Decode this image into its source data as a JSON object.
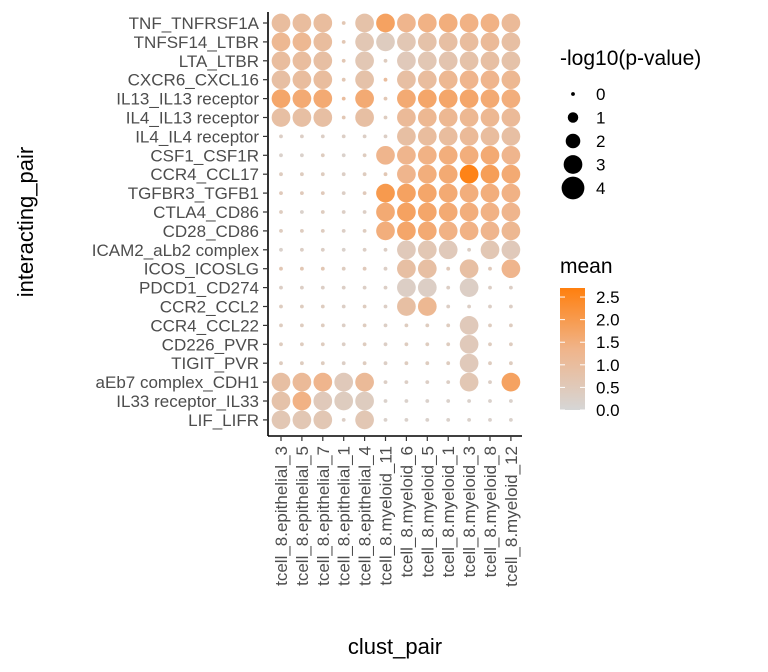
{
  "chart_data": {
    "type": "dotplot",
    "xlabel": "clust_pair",
    "ylabel": "interacting_pair",
    "x_categories": [
      "tcell_8.epithelial_3",
      "tcell_8.epithelial_5",
      "tcell_8.epithelial_7",
      "tcell_8.epithelial_1",
      "tcell_8.epithelial_4",
      "tcell_8.myeloid_11",
      "tcell_8.myeloid_6",
      "tcell_8.myeloid_5",
      "tcell_8.myeloid_1",
      "tcell_8.myeloid_3",
      "tcell_8.myeloid_8",
      "tcell_8.myeloid_12"
    ],
    "y_categories": [
      "TNF_TNFRSF1A",
      "TNFSF14_LTBR",
      "LTA_LTBR",
      "CXCR6_CXCL16",
      "IL13_IL13 receptor",
      "IL4_IL13 receptor",
      "IL4_IL4 receptor",
      "CSF1_CSF1R",
      "CCR4_CCL17",
      "TGFBR3_TGFB1",
      "CTLA4_CD86",
      "CD28_CD86",
      "ICAM2_aLb2 complex",
      "ICOS_ICOSLG",
      "PDCD1_CD274",
      "CCR2_CCL2",
      "CCR4_CCL22",
      "CD226_PVR",
      "TIGIT_PVR",
      "aEb7 complex_CDH1",
      "IL33 receptor_IL33",
      "LIF_LIFR"
    ],
    "size_legend": {
      "title": "-log10(p-value)",
      "breaks": [
        0,
        1,
        2,
        3,
        4
      ]
    },
    "color_legend": {
      "title": "mean",
      "breaks": [
        0.0,
        0.5,
        1.0,
        1.5,
        2.0,
        2.5
      ],
      "low_color": "#d6d6d6",
      "mid_color": "#f0b48a",
      "high_color": "#ff7f0e",
      "range": [
        0,
        2.7
      ]
    },
    "pvalue_matrix": [
      [
        3,
        3,
        3,
        0,
        3,
        3,
        3,
        3,
        3,
        3,
        3,
        3
      ],
      [
        3,
        3,
        3,
        0,
        3,
        3,
        3,
        3,
        3,
        3,
        3,
        3
      ],
      [
        3,
        3,
        3,
        0,
        3,
        0,
        3,
        3,
        3,
        3,
        3,
        3
      ],
      [
        3,
        3,
        3,
        0,
        3,
        0,
        3,
        3,
        3,
        3,
        3,
        3
      ],
      [
        3,
        3,
        3,
        0,
        3,
        0,
        3,
        3,
        3,
        3,
        3,
        3
      ],
      [
        3,
        3,
        3,
        0,
        3,
        0,
        3,
        3,
        3,
        3,
        3,
        3
      ],
      [
        0,
        0,
        0,
        0,
        0,
        0,
        3,
        3,
        3,
        3,
        3,
        3
      ],
      [
        0,
        0,
        0,
        0,
        0,
        3,
        3,
        3,
        3,
        3,
        3,
        3
      ],
      [
        0,
        0,
        0,
        0,
        0,
        0,
        3,
        3,
        3,
        3,
        3,
        3
      ],
      [
        0,
        0,
        0,
        0,
        0,
        3,
        3,
        3,
        3,
        3,
        3,
        3
      ],
      [
        0,
        0,
        0,
        0,
        0,
        3,
        3,
        3,
        3,
        3,
        3,
        3
      ],
      [
        0,
        0,
        0,
        0,
        0,
        3,
        3,
        3,
        3,
        3,
        3,
        3
      ],
      [
        0,
        0,
        0,
        0,
        0,
        0,
        3,
        3,
        3,
        0,
        3,
        3
      ],
      [
        0,
        0,
        0,
        0,
        0,
        0,
        3,
        3,
        0,
        3,
        0,
        3
      ],
      [
        0,
        0,
        0,
        0,
        0,
        0,
        3,
        3,
        0,
        3,
        0,
        0
      ],
      [
        0,
        0,
        0,
        0,
        0,
        0,
        3,
        3,
        0,
        0,
        0,
        0
      ],
      [
        0,
        0,
        0,
        0,
        0,
        0,
        0,
        0,
        0,
        3,
        0,
        0
      ],
      [
        0,
        0,
        0,
        0,
        0,
        0,
        0,
        0,
        0,
        3,
        0,
        0
      ],
      [
        0,
        0,
        0,
        0,
        0,
        0,
        0,
        0,
        0,
        3,
        0,
        0
      ],
      [
        3,
        3,
        3,
        3,
        3,
        0,
        0,
        0,
        0,
        3,
        0,
        3
      ],
      [
        3,
        3,
        3,
        3,
        3,
        0,
        0,
        0,
        0,
        0,
        0,
        0
      ],
      [
        3,
        3,
        3,
        0,
        3,
        0,
        0,
        0,
        0,
        0,
        0,
        0
      ]
    ],
    "mean_matrix": [
      [
        1.0,
        1.0,
        1.0,
        0.6,
        0.8,
        1.8,
        1.3,
        1.4,
        1.5,
        1.4,
        1.4,
        1.1
      ],
      [
        1.2,
        1.2,
        1.0,
        0.6,
        0.6,
        0.4,
        0.6,
        0.8,
        0.9,
        1.0,
        1.1,
        0.9
      ],
      [
        1.0,
        1.0,
        0.9,
        0.6,
        0.6,
        0.4,
        0.5,
        0.6,
        0.7,
        0.8,
        0.9,
        0.8
      ],
      [
        0.9,
        1.0,
        1.0,
        0.6,
        0.8,
        1.0,
        0.9,
        1.0,
        1.2,
        1.3,
        1.3,
        1.2
      ],
      [
        1.7,
        1.6,
        1.6,
        1.0,
        1.6,
        0.6,
        1.6,
        1.7,
        1.7,
        1.7,
        1.6,
        1.5
      ],
      [
        0.9,
        0.9,
        0.9,
        0.6,
        0.9,
        0.4,
        1.1,
        1.2,
        1.2,
        1.2,
        1.2,
        1.1
      ],
      [
        0.3,
        0.3,
        0.3,
        0.3,
        0.3,
        0.3,
        0.9,
        1.0,
        1.0,
        1.1,
        1.0,
        0.9
      ],
      [
        0.2,
        0.2,
        0.4,
        0.2,
        0.4,
        1.3,
        1.3,
        1.4,
        1.5,
        1.5,
        1.6,
        1.3
      ],
      [
        0.4,
        0.4,
        0.4,
        0.3,
        0.4,
        0.6,
        1.3,
        1.5,
        1.6,
        2.6,
        1.9,
        1.6
      ],
      [
        0.5,
        0.5,
        0.5,
        0.3,
        0.5,
        2.0,
        1.8,
        1.7,
        1.6,
        1.5,
        1.5,
        1.4
      ],
      [
        0.4,
        0.2,
        0.4,
        0.3,
        0.3,
        1.6,
        1.8,
        1.7,
        1.6,
        1.5,
        1.4,
        1.3
      ],
      [
        0.4,
        0.4,
        0.4,
        0.3,
        0.4,
        1.5,
        1.7,
        1.6,
        1.4,
        1.4,
        1.3,
        1.2
      ],
      [
        0.2,
        0.3,
        0.3,
        0.2,
        0.3,
        0.3,
        0.5,
        0.6,
        0.5,
        0.3,
        0.6,
        0.5
      ],
      [
        0.6,
        0.6,
        0.6,
        0.4,
        0.5,
        0.3,
        0.9,
        0.9,
        0.5,
        0.9,
        0.5,
        1.3
      ],
      [
        0.3,
        0.3,
        0.3,
        0.3,
        0.3,
        0.3,
        0.3,
        0.3,
        0.3,
        0.3,
        0.3,
        0.3
      ],
      [
        0.4,
        0.4,
        0.4,
        0.3,
        0.4,
        0.3,
        0.9,
        1.2,
        0.3,
        0.3,
        0.3,
        0.3
      ],
      [
        0.4,
        0.4,
        0.4,
        0.3,
        0.4,
        0.3,
        0.4,
        0.4,
        0.4,
        0.5,
        0.4,
        0.4
      ],
      [
        0.4,
        0.4,
        0.4,
        0.3,
        0.4,
        0.3,
        0.4,
        0.4,
        0.4,
        0.5,
        0.4,
        0.4
      ],
      [
        0.4,
        0.4,
        0.4,
        0.3,
        0.4,
        0.3,
        0.4,
        0.4,
        0.4,
        0.5,
        0.4,
        0.4
      ],
      [
        0.9,
        1.1,
        1.3,
        0.5,
        1.1,
        0.3,
        0.3,
        0.3,
        0.3,
        0.6,
        0.3,
        1.8
      ],
      [
        0.8,
        1.4,
        0.5,
        0.4,
        0.4,
        0.2,
        0.2,
        0.2,
        0.2,
        0.2,
        0.2,
        0.2
      ],
      [
        0.6,
        0.6,
        0.6,
        0.3,
        0.6,
        0.2,
        0.2,
        0.2,
        0.2,
        0.2,
        0.2,
        0.2
      ]
    ]
  }
}
